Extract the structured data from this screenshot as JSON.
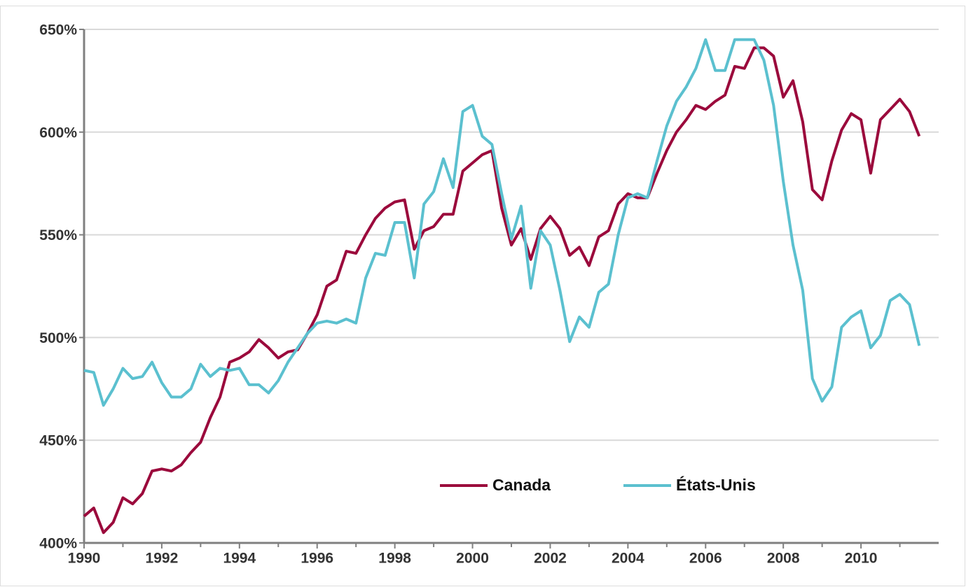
{
  "chart_data": {
    "type": "line",
    "x": [
      1990,
      1990.25,
      1990.5,
      1990.75,
      1991,
      1991.25,
      1991.5,
      1991.75,
      1992,
      1992.25,
      1992.5,
      1992.75,
      1993,
      1993.25,
      1993.5,
      1993.75,
      1994,
      1994.25,
      1994.5,
      1994.75,
      1995,
      1995.25,
      1995.5,
      1995.75,
      1996,
      1996.25,
      1996.5,
      1996.75,
      1997,
      1997.25,
      1997.5,
      1997.75,
      1998,
      1998.25,
      1998.5,
      1998.75,
      1999,
      1999.25,
      1999.5,
      1999.75,
      2000,
      2000.25,
      2000.5,
      2000.75,
      2001,
      2001.25,
      2001.5,
      2001.75,
      2002,
      2002.25,
      2002.5,
      2002.75,
      2003,
      2003.25,
      2003.5,
      2003.75,
      2004,
      2004.25,
      2004.5,
      2004.75,
      2005,
      2005.25,
      2005.5,
      2005.75,
      2006,
      2006.25,
      2006.5,
      2006.75,
      2007,
      2007.25,
      2007.5,
      2007.75,
      2008,
      2008.25,
      2008.5,
      2008.75,
      2009,
      2009.25,
      2009.5,
      2009.75,
      2010,
      2010.25,
      2010.5,
      2010.75,
      2011,
      2011.25,
      2011.5
    ],
    "series": [
      {
        "name": "Canada",
        "color": "#9b0a3c",
        "values": [
          413,
          417,
          405,
          410,
          422,
          419,
          424,
          435,
          436,
          435,
          438,
          444,
          449,
          461,
          471,
          488,
          490,
          493,
          499,
          495,
          490,
          493,
          494,
          502,
          511,
          525,
          528,
          542,
          541,
          550,
          558,
          563,
          566,
          567,
          543,
          552,
          554,
          560,
          560,
          581,
          585,
          589,
          591,
          563,
          545,
          553,
          538,
          553,
          559,
          553,
          540,
          544,
          535,
          549,
          552,
          565,
          570,
          568,
          568,
          580,
          591,
          600,
          606,
          613,
          611,
          615,
          618,
          632,
          631,
          641,
          641,
          637,
          617,
          625,
          605,
          572,
          567,
          586,
          601,
          609,
          606,
          580,
          606,
          611,
          616,
          610,
          598
        ]
      },
      {
        "name": "États-Unis",
        "color": "#5bc0cf",
        "values": [
          484,
          483,
          467,
          475,
          485,
          480,
          481,
          488,
          478,
          471,
          471,
          475,
          487,
          481,
          485,
          484,
          485,
          477,
          477,
          473,
          479,
          488,
          495,
          502,
          507,
          508,
          507,
          509,
          507,
          529,
          541,
          540,
          556,
          556,
          529,
          565,
          571,
          587,
          573,
          610,
          613,
          598,
          594,
          570,
          548,
          564,
          524,
          552,
          545,
          523,
          498,
          510,
          505,
          522,
          526,
          550,
          568,
          570,
          568,
          586,
          603,
          615,
          622,
          631,
          645,
          630,
          630,
          645,
          645,
          645,
          635,
          613,
          576,
          545,
          523,
          480,
          469,
          476,
          505,
          510,
          513,
          495,
          501,
          518,
          521,
          516,
          496
        ]
      }
    ],
    "xlim": [
      1990,
      2012
    ],
    "xticks": [
      1990,
      1992,
      1994,
      1996,
      1998,
      2000,
      2002,
      2004,
      2006,
      2008,
      2010
    ],
    "ylim": [
      400,
      650
    ],
    "yticks": [
      {
        "value": 400,
        "label": "400%"
      },
      {
        "value": 450,
        "label": "450%"
      },
      {
        "value": 500,
        "label": "500%"
      },
      {
        "value": 550,
        "label": "550%"
      },
      {
        "value": 600,
        "label": "600%"
      },
      {
        "value": 650,
        "label": "650%"
      }
    ],
    "grid": true,
    "legend": "lower center"
  }
}
